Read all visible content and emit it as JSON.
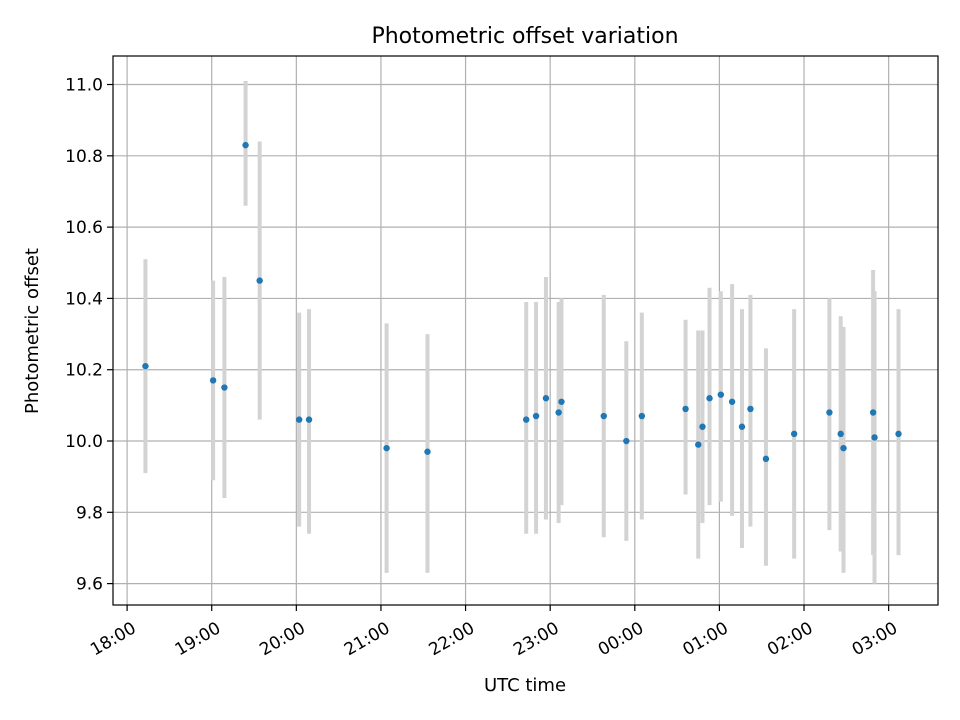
{
  "chart_data": {
    "type": "scatter",
    "title": "Photometric offset variation",
    "xlabel": "UTC time",
    "ylabel": "Photometric offset",
    "x_ticks": [
      "18:00",
      "19:00",
      "20:00",
      "21:00",
      "22:00",
      "23:00",
      "00:00",
      "01:00",
      "02:00",
      "03:00"
    ],
    "y_ticks": [
      "9.6",
      "9.8",
      "10.0",
      "10.2",
      "10.4",
      "10.6",
      "10.8",
      "11.0"
    ],
    "xlim": [
      "17:50",
      "03:35"
    ],
    "ylim": [
      9.54,
      11.08
    ],
    "grid": true,
    "colors": {
      "points": "#1f77b4",
      "errorbars": "#d3d3d3",
      "grid": "#b0b0b0"
    },
    "points": [
      {
        "t": "18:13",
        "y": 10.21,
        "ylo": 9.91,
        "yhi": 10.51
      },
      {
        "t": "19:01",
        "y": 10.17,
        "ylo": 9.89,
        "yhi": 10.45
      },
      {
        "t": "19:09",
        "y": 10.15,
        "ylo": 9.84,
        "yhi": 10.46
      },
      {
        "t": "19:24",
        "y": 10.83,
        "ylo": 10.66,
        "yhi": 11.01
      },
      {
        "t": "19:34",
        "y": 10.45,
        "ylo": 10.06,
        "yhi": 10.84
      },
      {
        "t": "20:02",
        "y": 10.06,
        "ylo": 9.76,
        "yhi": 10.36
      },
      {
        "t": "20:09",
        "y": 10.06,
        "ylo": 9.74,
        "yhi": 10.37
      },
      {
        "t": "21:04",
        "y": 9.98,
        "ylo": 9.63,
        "yhi": 10.33
      },
      {
        "t": "21:33",
        "y": 9.97,
        "ylo": 9.63,
        "yhi": 10.3
      },
      {
        "t": "22:43",
        "y": 10.06,
        "ylo": 9.74,
        "yhi": 10.39
      },
      {
        "t": "22:50",
        "y": 10.07,
        "ylo": 9.74,
        "yhi": 10.39
      },
      {
        "t": "22:57",
        "y": 10.12,
        "ylo": 9.78,
        "yhi": 10.46
      },
      {
        "t": "23:06",
        "y": 10.08,
        "ylo": 9.77,
        "yhi": 10.39
      },
      {
        "t": "23:08",
        "y": 10.11,
        "ylo": 9.82,
        "yhi": 10.4
      },
      {
        "t": "23:38",
        "y": 10.07,
        "ylo": 9.73,
        "yhi": 10.41
      },
      {
        "t": "23:54",
        "y": 10.0,
        "ylo": 9.72,
        "yhi": 10.28
      },
      {
        "t": "00:05",
        "y": 10.07,
        "ylo": 9.78,
        "yhi": 10.36
      },
      {
        "t": "00:36",
        "y": 10.09,
        "ylo": 9.85,
        "yhi": 10.34
      },
      {
        "t": "00:45",
        "y": 9.99,
        "ylo": 9.67,
        "yhi": 10.31
      },
      {
        "t": "00:48",
        "y": 10.04,
        "ylo": 9.77,
        "yhi": 10.31
      },
      {
        "t": "00:53",
        "y": 10.12,
        "ylo": 9.82,
        "yhi": 10.43
      },
      {
        "t": "01:01",
        "y": 10.13,
        "ylo": 9.83,
        "yhi": 10.42
      },
      {
        "t": "01:09",
        "y": 10.11,
        "ylo": 9.79,
        "yhi": 10.44
      },
      {
        "t": "01:16",
        "y": 10.04,
        "ylo": 9.7,
        "yhi": 10.37
      },
      {
        "t": "01:22",
        "y": 10.09,
        "ylo": 9.76,
        "yhi": 10.41
      },
      {
        "t": "01:33",
        "y": 9.95,
        "ylo": 9.65,
        "yhi": 10.26
      },
      {
        "t": "01:53",
        "y": 10.02,
        "ylo": 9.67,
        "yhi": 10.37
      },
      {
        "t": "02:18",
        "y": 10.08,
        "ylo": 9.75,
        "yhi": 10.4
      },
      {
        "t": "02:26",
        "y": 10.02,
        "ylo": 9.69,
        "yhi": 10.35
      },
      {
        "t": "02:28",
        "y": 9.98,
        "ylo": 9.63,
        "yhi": 10.32
      },
      {
        "t": "02:49",
        "y": 10.08,
        "ylo": 9.68,
        "yhi": 10.48
      },
      {
        "t": "02:50",
        "y": 10.01,
        "ylo": 9.6,
        "yhi": 10.42
      },
      {
        "t": "03:07",
        "y": 10.02,
        "ylo": 9.68,
        "yhi": 10.37
      }
    ]
  }
}
